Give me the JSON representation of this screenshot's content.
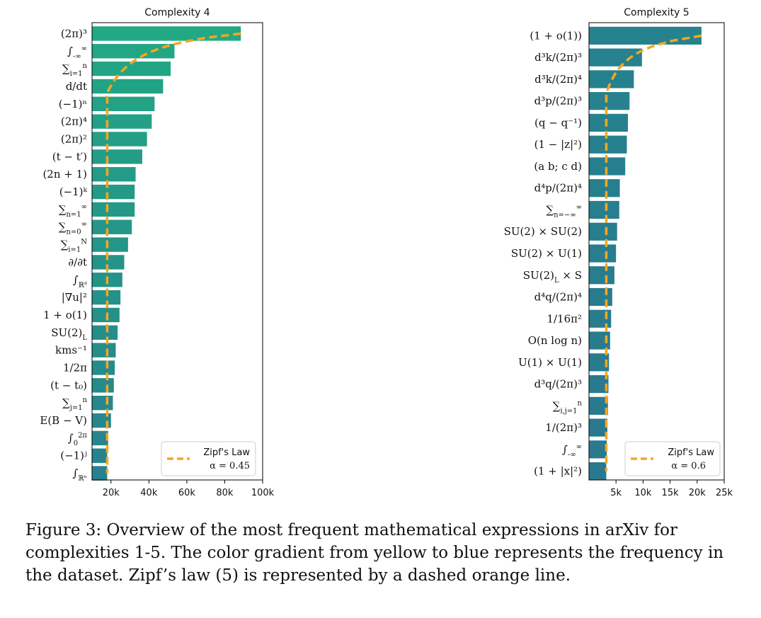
{
  "chart_data": [
    {
      "type": "bar",
      "orientation": "horizontal",
      "title": "Complexity 4",
      "categories": [
        "(2π)³",
        "∫_{-∞}^{∞}",
        "∑_{i=1}^{n}",
        "d/dt",
        "(−1)ⁿ",
        "(2π)⁴",
        "(2π)²",
        "(t − t′)",
        "(2n + 1)",
        "(−1)ᵏ",
        "∑_{n=1}^{∞}",
        "∑_{n=0}^{∞}",
        "∑_{i=1}^{N}",
        "∂/∂t",
        "∫_{ℝᵈ}",
        "|∇u|²",
        "1 + o(1)",
        "SU(2)_L",
        "kms⁻¹",
        "1/2π",
        "(t − t₀)",
        "∑_{j=1}^{n}",
        "E(B − V)",
        "∫_0^{2π}",
        "(−1)ʲ",
        "∫_{ℝⁿ}"
      ],
      "values": [
        88500,
        53500,
        51500,
        47500,
        43000,
        41500,
        39000,
        36500,
        33000,
        32500,
        32500,
        31000,
        29000,
        27000,
        26000,
        25000,
        24500,
        23500,
        22500,
        22000,
        21500,
        21000,
        20000,
        18500,
        18000,
        18000
      ],
      "xlim": [
        10000,
        100000
      ],
      "xticks": [
        "20k",
        "40k",
        "60k",
        "80k",
        "100k"
      ],
      "xtick_values": [
        20000,
        40000,
        60000,
        80000,
        100000
      ],
      "zipf": {
        "label": "Zipf's Law",
        "alpha_text": "α = 0.45",
        "alpha": 0.45
      },
      "legend": "bottom-right",
      "bar_color_start": "#22a884",
      "bar_color_end": "#26828e"
    },
    {
      "type": "bar",
      "orientation": "horizontal",
      "title": "Complexity 5",
      "categories": [
        "(1 + o(1))",
        "d³k/(2π)³",
        "d³k/(2π)⁴",
        "d³p/(2π)³",
        "(q − q⁻¹)",
        "(1 − |z|²)",
        "(a b; c d)",
        "d⁴p/(2π)⁴",
        "∑_{n=−∞}^{∞}",
        "SU(2) × SU(2)",
        "SU(2) × U(1)",
        "SU(2)_L × S",
        "d⁴q/(2π)⁴",
        "1/16π²",
        "O(n log n)",
        "U(1) × U(1)",
        "d³q/(2π)³",
        "∑_{i,j=1}^{n}",
        "1/(2π)³",
        "∫_{-∞}^{∞}",
        "(1 + |x|²)"
      ],
      "values": [
        20800,
        9800,
        8300,
        7500,
        7200,
        7000,
        6700,
        5700,
        5600,
        5200,
        5000,
        4700,
        4300,
        4100,
        3900,
        3700,
        3600,
        3500,
        3400,
        3300,
        3200
      ],
      "xlim": [
        0,
        25000
      ],
      "xticks": [
        "5k",
        "10k",
        "15k",
        "20k",
        "25k"
      ],
      "xtick_values": [
        5000,
        10000,
        15000,
        20000,
        25000
      ],
      "zipf": {
        "label": "Zipf's Law",
        "alpha_text": "α = 0.6",
        "alpha": 0.6
      },
      "legend": "bottom-right",
      "bar_color_start": "#26828e",
      "bar_color_end": "#2a788e"
    }
  ],
  "zipf_color": "#f5a623",
  "caption": "Figure 3: Overview of the most frequent mathematical expressions in arXiv for complexities 1-5. The color gradient from yellow to blue represents the frequency in the dataset. Zipf’s law (5) is represented by a dashed orange line."
}
